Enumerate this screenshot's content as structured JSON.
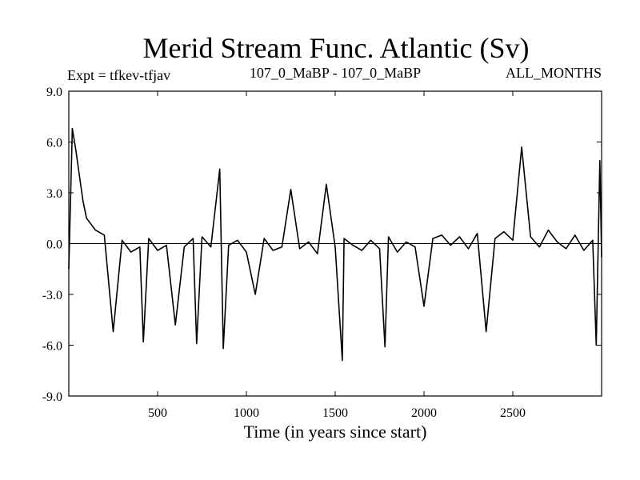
{
  "chart_data": {
    "type": "line",
    "title": "Merid Stream Func. Atlantic (Sv)",
    "subtitle_left": "Expt = tfkev-tfjav",
    "subtitle_center": "107_0_MaBP - 107_0_MaBP",
    "subtitle_right": "ALL_MONTHS",
    "xlabel": "Time (in years since start)",
    "ylabel": "",
    "xlim": [
      0,
      3000
    ],
    "ylim": [
      -9,
      9
    ],
    "xticks": [
      500,
      1000,
      1500,
      2000,
      2500
    ],
    "xtick_labels": [
      "500",
      "1000",
      "1500",
      "2000",
      "2500"
    ],
    "yticks": [
      9,
      6,
      3,
      0,
      -3,
      -6,
      -9
    ],
    "ytick_labels": [
      "9.0",
      "6.0",
      "3.0",
      "0.0",
      "-3.0",
      "-6.0",
      "-9.0"
    ],
    "zero_line": true,
    "grid": false,
    "color": "#000000",
    "series": [
      {
        "x": [
          0,
          20,
          40,
          60,
          80,
          100,
          150,
          200,
          250,
          300,
          350,
          400,
          420,
          450,
          500,
          550,
          600,
          650,
          700,
          720,
          750,
          800,
          850,
          870,
          900,
          950,
          1000,
          1050,
          1100,
          1150,
          1200,
          1250,
          1300,
          1350,
          1400,
          1450,
          1500,
          1540,
          1550,
          1600,
          1650,
          1700,
          1750,
          1780,
          1800,
          1850,
          1900,
          1950,
          2000,
          2050,
          2100,
          2150,
          2200,
          2250,
          2300,
          2350,
          2400,
          2450,
          2500,
          2550,
          2600,
          2650,
          2700,
          2750,
          2800,
          2850,
          2900,
          2950,
          2970,
          2990,
          3000
        ],
        "y": [
          -1.5,
          6.8,
          5.5,
          4.0,
          2.5,
          1.5,
          0.8,
          0.5,
          -5.2,
          0.2,
          -0.5,
          -0.2,
          -5.8,
          0.3,
          -0.4,
          -0.1,
          -4.8,
          -0.2,
          0.3,
          -5.9,
          0.4,
          -0.2,
          4.4,
          -6.2,
          -0.1,
          0.2,
          -0.5,
          -3.0,
          0.3,
          -0.4,
          -0.2,
          3.2,
          -0.3,
          0.1,
          -0.6,
          3.5,
          -0.2,
          -6.9,
          0.3,
          -0.1,
          -0.4,
          0.2,
          -0.3,
          -6.1,
          0.4,
          -0.5,
          0.1,
          -0.2,
          -3.7,
          0.3,
          0.5,
          -0.1,
          0.4,
          -0.3,
          0.6,
          -5.2,
          0.3,
          0.7,
          0.2,
          5.7,
          0.4,
          -0.2,
          0.8,
          0.1,
          -0.3,
          0.5,
          -0.4,
          0.2,
          -6.0,
          4.9,
          -0.8
        ]
      }
    ]
  }
}
